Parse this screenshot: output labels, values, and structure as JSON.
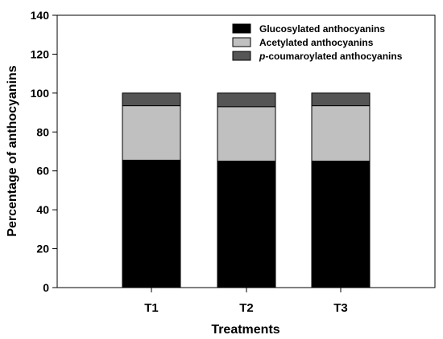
{
  "chart_data": {
    "type": "bar",
    "stacked": true,
    "title": "",
    "xlabel": "Treatments",
    "ylabel": "Percentage of anthocyanins",
    "ylim": [
      0,
      140
    ],
    "yticks": [
      0,
      20,
      40,
      60,
      80,
      100,
      120,
      140
    ],
    "grid": false,
    "legend_position": "top-right",
    "categories": [
      "T1",
      "T2",
      "T3"
    ],
    "series": [
      {
        "name": "Glucosylated anthocyanins",
        "name_prefix": "",
        "name_suffix": "",
        "color": "#000000",
        "values": [
          65.5,
          65,
          65
        ]
      },
      {
        "name": "Acetylated anthocyanins",
        "name_prefix": "",
        "name_suffix": "",
        "color": "#c0c0c0",
        "values": [
          28,
          28,
          28.5
        ]
      },
      {
        "name": "p-coumaroylated anthocyanins",
        "name_prefix": "p",
        "name_suffix": "-coumaroylated anthocyanins",
        "color": "#555555",
        "values": [
          6.5,
          7,
          6.5
        ]
      }
    ]
  }
}
